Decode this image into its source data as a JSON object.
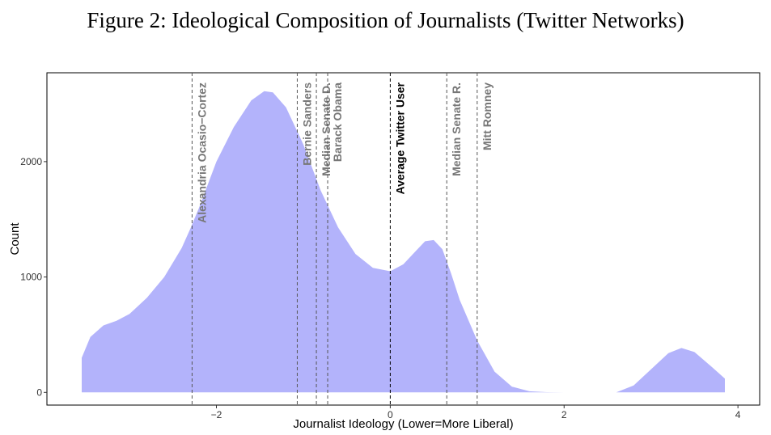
{
  "chart_data": {
    "type": "area",
    "title": "Figure 2: Ideological Composition of Journalists (Twitter Networks)",
    "xlabel": "Journalist Ideology (Lower=More Liberal)",
    "ylabel": "Count",
    "xlim": [
      -3.95,
      4.25
    ],
    "ylim": [
      -110,
      2770
    ],
    "x_ticks": [
      -2,
      0,
      2,
      4
    ],
    "x_tick_labels": [
      "−2",
      "0",
      "2",
      "4"
    ],
    "y_ticks": [
      0,
      1000,
      2000
    ],
    "y_tick_labels": [
      "0",
      "1000",
      "2000"
    ],
    "grid": false,
    "fill_color": "#b3b3fb",
    "series": [
      {
        "x": [
          -3.55,
          -3.45,
          -3.3,
          -3.15,
          -3.0,
          -2.8,
          -2.6,
          -2.4,
          -2.3,
          -2.2,
          -2.0,
          -1.8,
          -1.6,
          -1.45,
          -1.35,
          -1.2,
          -1.0,
          -0.8,
          -0.6,
          -0.4,
          -0.2,
          0.0,
          0.15,
          0.3,
          0.4,
          0.5,
          0.6,
          0.7,
          0.8,
          1.0,
          1.2,
          1.4,
          1.6,
          1.8,
          2.0,
          2.2,
          2.4,
          2.6,
          2.8,
          3.0,
          3.2,
          3.35,
          3.5,
          3.7,
          3.85
        ],
        "y": [
          300,
          480,
          580,
          620,
          680,
          820,
          1000,
          1250,
          1420,
          1600,
          2000,
          2300,
          2530,
          2610,
          2600,
          2470,
          2150,
          1750,
          1430,
          1200,
          1080,
          1050,
          1110,
          1230,
          1310,
          1320,
          1240,
          1030,
          800,
          450,
          180,
          50,
          10,
          2,
          0,
          0,
          0,
          0,
          60,
          200,
          340,
          385,
          350,
          220,
          120
        ]
      }
    ],
    "reference_lines": [
      {
        "x": -2.28,
        "label": "Alexandria Ocasio−Cortez",
        "color": "#777777"
      },
      {
        "x": -1.07,
        "label": "Bernie Sanders",
        "color": "#777777"
      },
      {
        "x": -0.85,
        "label": "Median Senate D.",
        "color": "#777777"
      },
      {
        "x": -0.72,
        "label": "Barack Obama",
        "color": "#777777"
      },
      {
        "x": 0.0,
        "label": "Average Twitter User",
        "color": "#000000"
      },
      {
        "x": 0.65,
        "label": "Median Senate R.",
        "color": "#777777"
      },
      {
        "x": 1.0,
        "label": "Mitt Romney",
        "color": "#777777"
      }
    ]
  }
}
